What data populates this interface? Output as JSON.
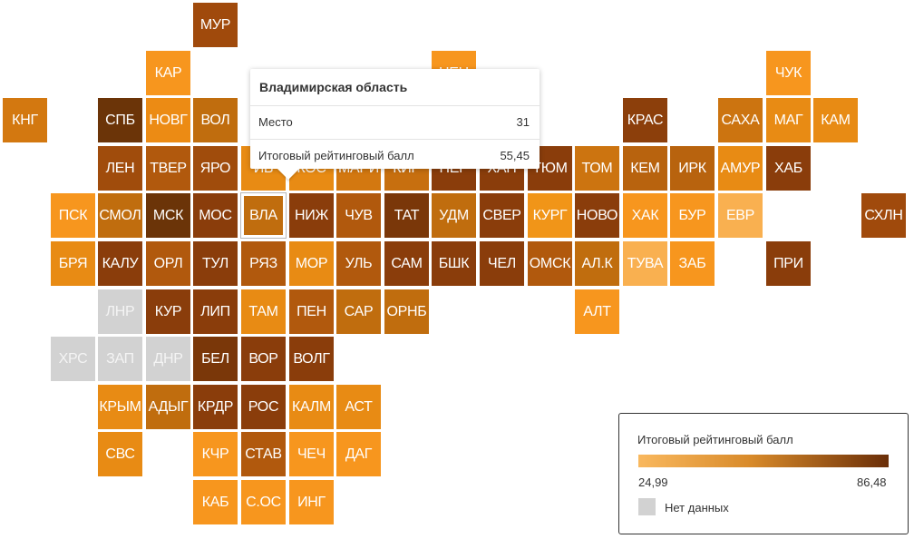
{
  "legend": {
    "title": "Итоговый рейтинговый балл",
    "min": "24,99",
    "max": "86,48",
    "min_value": 24.99,
    "max_value": 86.48,
    "min_color": "#f9b85e",
    "max_color": "#6a2e08",
    "nodata_label": "Нет данных",
    "nodata_color": "#d2d2d2"
  },
  "tooltip": {
    "title": "Владимирская область",
    "rows": [
      {
        "label": "Место",
        "value": "31"
      },
      {
        "label": "Итоговый рейтинговый балл",
        "value": "55,45"
      }
    ]
  },
  "tiles": [
    {
      "label": "МУР",
      "color": "#a04a0c",
      "col": 4,
      "row": 0
    },
    {
      "label": "КАР",
      "color": "#f7961e",
      "col": 3,
      "row": 1
    },
    {
      "label": "НЕН",
      "color": "#f7961e",
      "col": 9,
      "row": 1
    },
    {
      "label": "ЧУК",
      "color": "#f7961e",
      "col": 16,
      "row": 1
    },
    {
      "label": "КНГ",
      "color": "#d37810",
      "col": 0,
      "row": 2
    },
    {
      "label": "СПБ",
      "color": "#6b3408",
      "col": 2,
      "row": 2
    },
    {
      "label": "НОВГ",
      "color": "#ec8b14",
      "col": 3,
      "row": 2
    },
    {
      "label": "ВОЛ",
      "color": "#c06d0e",
      "col": 4,
      "row": 2
    },
    {
      "label": "КРАС",
      "color": "#8c3f0b",
      "col": 13,
      "row": 2
    },
    {
      "label": "САХА",
      "color": "#cc7410",
      "col": 15,
      "row": 2
    },
    {
      "label": "МАГ",
      "color": "#e88b14",
      "col": 16,
      "row": 2
    },
    {
      "label": "КАМ",
      "color": "#e88b14",
      "col": 17,
      "row": 2
    },
    {
      "label": "ЛЕН",
      "color": "#a04c0c",
      "col": 2,
      "row": 3
    },
    {
      "label": "ТВЕР",
      "color": "#b1590d",
      "col": 3,
      "row": 3
    },
    {
      "label": "ЯРО",
      "color": "#a04c0c",
      "col": 4,
      "row": 3
    },
    {
      "label": "ИВ",
      "color": "#e88b14",
      "col": 5,
      "row": 3
    },
    {
      "label": "КОС",
      "color": "#e88b14",
      "col": 6,
      "row": 3
    },
    {
      "label": "МАРИ",
      "color": "#d37810",
      "col": 7,
      "row": 3
    },
    {
      "label": "КИР",
      "color": "#c76f0f",
      "col": 8,
      "row": 3
    },
    {
      "label": "ПЕР",
      "color": "#8a3d0b",
      "col": 9,
      "row": 3
    },
    {
      "label": "ХАН",
      "color": "#8a3d0b",
      "col": 10,
      "row": 3
    },
    {
      "label": "ТЮМ",
      "color": "#8a3d0b",
      "col": 11,
      "row": 3
    },
    {
      "label": "ТОМ",
      "color": "#cc7410",
      "col": 12,
      "row": 3
    },
    {
      "label": "КЕМ",
      "color": "#b8630e",
      "col": 13,
      "row": 3
    },
    {
      "label": "ИРК",
      "color": "#b8630e",
      "col": 14,
      "row": 3
    },
    {
      "label": "АМУР",
      "color": "#e88b14",
      "col": 15,
      "row": 3
    },
    {
      "label": "ХАБ",
      "color": "#8a3d0b",
      "col": 16,
      "row": 3
    },
    {
      "label": "ПСК",
      "color": "#f7961e",
      "col": 1,
      "row": 4
    },
    {
      "label": "СМОЛ",
      "color": "#c06d0e",
      "col": 2,
      "row": 4
    },
    {
      "label": "МСК",
      "color": "#6b3408",
      "col": 3,
      "row": 4
    },
    {
      "label": "МОС",
      "color": "#8a3d0b",
      "col": 4,
      "row": 4
    },
    {
      "label": "ВЛА",
      "color": "#c06d0e",
      "col": 5,
      "row": 4,
      "selected": true
    },
    {
      "label": "НИЖ",
      "color": "#8a3d0b",
      "col": 6,
      "row": 4
    },
    {
      "label": "ЧУВ",
      "color": "#b1590d",
      "col": 7,
      "row": 4
    },
    {
      "label": "ТАТ",
      "color": "#7a3709",
      "col": 8,
      "row": 4
    },
    {
      "label": "УДМ",
      "color": "#c06d0e",
      "col": 9,
      "row": 4
    },
    {
      "label": "СВЕР",
      "color": "#8a3d0b",
      "col": 10,
      "row": 4
    },
    {
      "label": "КУРГ",
      "color": "#f19518",
      "col": 11,
      "row": 4
    },
    {
      "label": "НОВО",
      "color": "#8a3d0b",
      "col": 12,
      "row": 4
    },
    {
      "label": "ХАК",
      "color": "#f7961e",
      "col": 13,
      "row": 4
    },
    {
      "label": "БУР",
      "color": "#f7961e",
      "col": 14,
      "row": 4
    },
    {
      "label": "ЕВР",
      "color": "#f9b050",
      "col": 15,
      "row": 4
    },
    {
      "label": "СХЛН",
      "color": "#a04a0c",
      "col": 18,
      "row": 4
    },
    {
      "label": "БРЯ",
      "color": "#e88b14",
      "col": 1,
      "row": 5
    },
    {
      "label": "КАЛУ",
      "color": "#8a3d0b",
      "col": 2,
      "row": 5
    },
    {
      "label": "ОРЛ",
      "color": "#b1590d",
      "col": 3,
      "row": 5
    },
    {
      "label": "ТУЛ",
      "color": "#8a3d0b",
      "col": 4,
      "row": 5
    },
    {
      "label": "РЯЗ",
      "color": "#b1590d",
      "col": 5,
      "row": 5
    },
    {
      "label": "МОР",
      "color": "#e88b14",
      "col": 6,
      "row": 5
    },
    {
      "label": "УЛЬ",
      "color": "#b1590d",
      "col": 7,
      "row": 5
    },
    {
      "label": "САМ",
      "color": "#8a3d0b",
      "col": 8,
      "row": 5
    },
    {
      "label": "БШК",
      "color": "#8a3d0b",
      "col": 9,
      "row": 5
    },
    {
      "label": "ЧЕЛ",
      "color": "#8a3d0b",
      "col": 10,
      "row": 5
    },
    {
      "label": "ОМСК",
      "color": "#b1590d",
      "col": 11,
      "row": 5
    },
    {
      "label": "АЛ.К",
      "color": "#c06d0e",
      "col": 12,
      "row": 5
    },
    {
      "label": "ТУВА",
      "color": "#f9b050",
      "col": 13,
      "row": 5
    },
    {
      "label": "ЗАБ",
      "color": "#f7961e",
      "col": 14,
      "row": 5
    },
    {
      "label": "ПРИ",
      "color": "#8a3d0b",
      "col": 16,
      "row": 5
    },
    {
      "label": "ЛНР",
      "color": "#d2d2d2",
      "col": 2,
      "row": 6,
      "nodata": true
    },
    {
      "label": "КУР",
      "color": "#8a3d0b",
      "col": 3,
      "row": 6
    },
    {
      "label": "ЛИП",
      "color": "#8a3d0b",
      "col": 4,
      "row": 6
    },
    {
      "label": "ТАМ",
      "color": "#e88b14",
      "col": 5,
      "row": 6
    },
    {
      "label": "ПЕН",
      "color": "#b1590d",
      "col": 6,
      "row": 6
    },
    {
      "label": "САР",
      "color": "#c06d0e",
      "col": 7,
      "row": 6
    },
    {
      "label": "ОРНБ",
      "color": "#c06d0e",
      "col": 8,
      "row": 6
    },
    {
      "label": "АЛТ",
      "color": "#f7961e",
      "col": 12,
      "row": 6
    },
    {
      "label": "ХРС",
      "color": "#d2d2d2",
      "col": 1,
      "row": 7,
      "nodata": true
    },
    {
      "label": "ЗАП",
      "color": "#d2d2d2",
      "col": 2,
      "row": 7,
      "nodata": true
    },
    {
      "label": "ДНР",
      "color": "#d2d2d2",
      "col": 3,
      "row": 7,
      "nodata": true
    },
    {
      "label": "БЕЛ",
      "color": "#7a3709",
      "col": 4,
      "row": 7
    },
    {
      "label": "ВОР",
      "color": "#8a3d0b",
      "col": 5,
      "row": 7
    },
    {
      "label": "ВОЛГ",
      "color": "#8a3d0b",
      "col": 6,
      "row": 7
    },
    {
      "label": "КРЫМ",
      "color": "#e88b14",
      "col": 2,
      "row": 8
    },
    {
      "label": "АДЫГ",
      "color": "#c06d0e",
      "col": 3,
      "row": 8
    },
    {
      "label": "КРДР",
      "color": "#8a3d0b",
      "col": 4,
      "row": 8
    },
    {
      "label": "РОС",
      "color": "#8a3d0b",
      "col": 5,
      "row": 8
    },
    {
      "label": "КАЛМ",
      "color": "#e88b14",
      "col": 6,
      "row": 8
    },
    {
      "label": "АСТ",
      "color": "#e88b14",
      "col": 7,
      "row": 8
    },
    {
      "label": "СВС",
      "color": "#e88b14",
      "col": 2,
      "row": 9
    },
    {
      "label": "КЧР",
      "color": "#f7961e",
      "col": 4,
      "row": 9
    },
    {
      "label": "СТАВ",
      "color": "#b1590d",
      "col": 5,
      "row": 9
    },
    {
      "label": "ЧЕЧ",
      "color": "#f7961e",
      "col": 6,
      "row": 9
    },
    {
      "label": "ДАГ",
      "color": "#f7961e",
      "col": 7,
      "row": 9
    },
    {
      "label": "КАБ",
      "color": "#f7961e",
      "col": 4,
      "row": 10
    },
    {
      "label": "С.ОС",
      "color": "#f7961e",
      "col": 5,
      "row": 10
    },
    {
      "label": "ИНГ",
      "color": "#f7961e",
      "col": 6,
      "row": 10
    }
  ]
}
